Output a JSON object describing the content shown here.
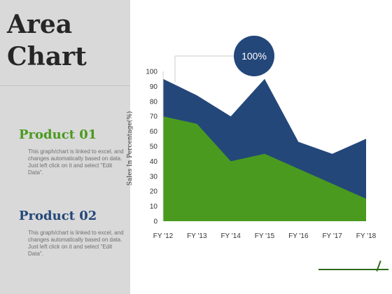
{
  "page": {
    "title_line1": "Area",
    "title_line2": "Chart",
    "products": [
      {
        "name": "Product 01",
        "description": "This graph/chart is linked to excel, and changes automatically based on data. Just left click on it and select \"Edit Data\"."
      },
      {
        "name": "Product 02",
        "description": "This graph/chart is linked to excel, and changes automatically based on data. Just left click on it and select \"Edit Data\"."
      }
    ],
    "badge": "100%"
  },
  "colors": {
    "product_01": "#4a9a1f",
    "product_02": "#24477a"
  },
  "chart_data": {
    "type": "area",
    "categories": [
      "FY '12",
      "FY '13",
      "FY '14",
      "FY '15",
      "FY '16",
      "FY '17",
      "FY '18"
    ],
    "series": [
      {
        "name": "Product 01",
        "values": [
          70,
          65,
          40,
          45,
          35,
          25,
          15
        ]
      },
      {
        "name": "Product 02",
        "values": [
          95,
          84,
          70,
          95,
          53,
          45,
          55
        ]
      }
    ],
    "ylabel": "Sales In Percentage(%)",
    "ylim": [
      0,
      100
    ],
    "yticks": [
      0,
      10,
      20,
      30,
      40,
      50,
      60,
      70,
      80,
      90,
      100
    ],
    "grid": false
  }
}
